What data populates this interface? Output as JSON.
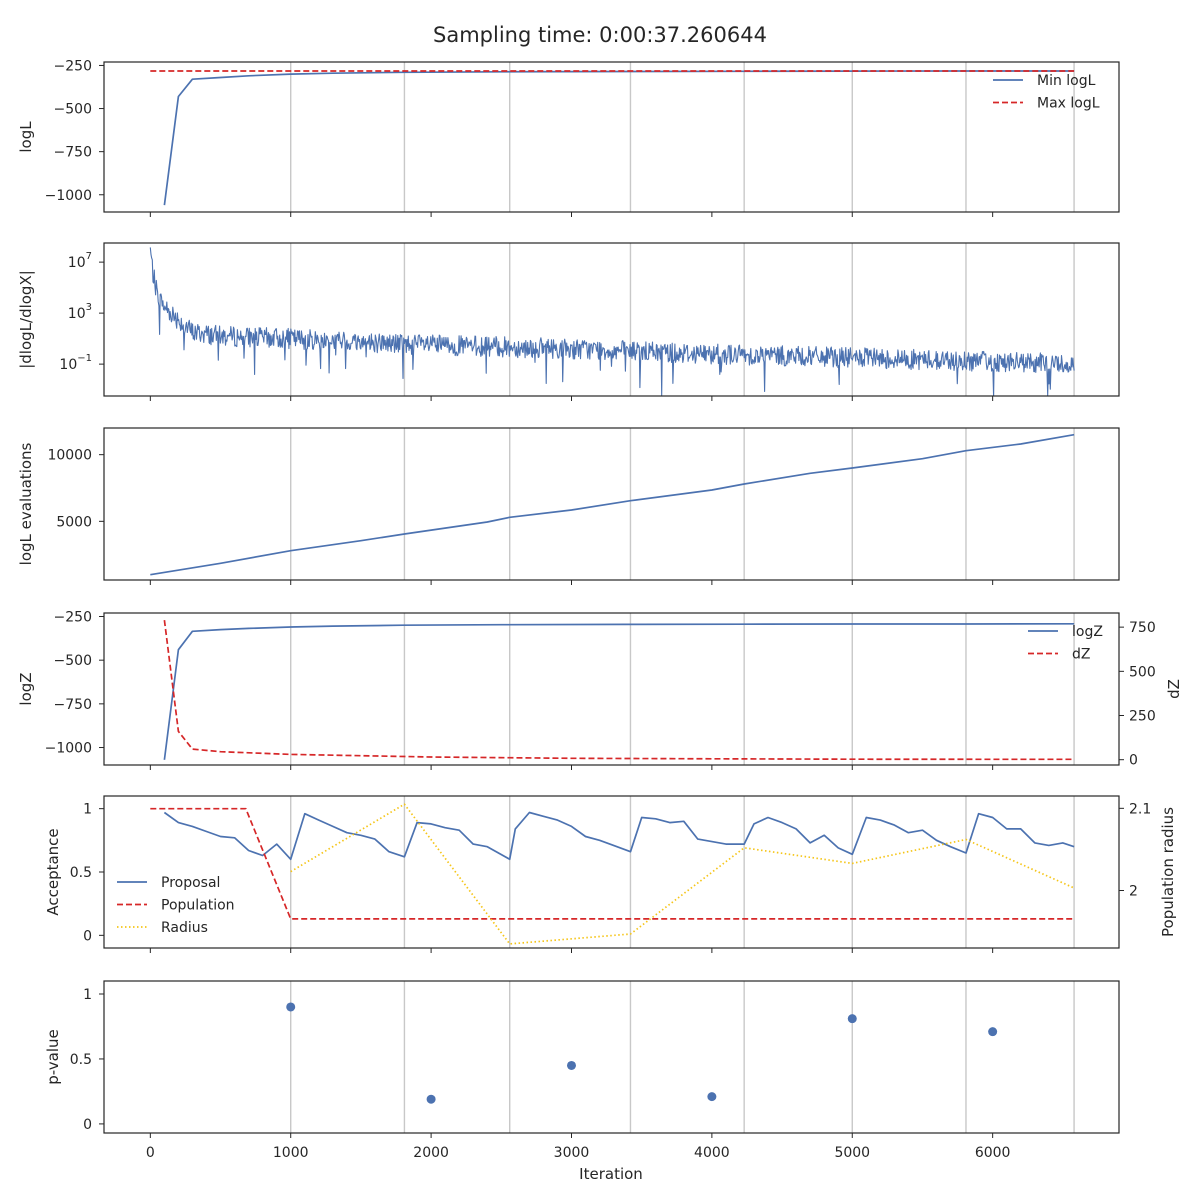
{
  "figure": {
    "title": "Sampling time: 0:00:37.260644",
    "xlabel": "Iteration",
    "xlim": [
      -330,
      6900
    ],
    "x_ticks": [
      0,
      1000,
      2000,
      3000,
      4000,
      5000,
      6000
    ],
    "vlines": [
      1000,
      1810,
      2560,
      3420,
      4230,
      5000,
      5810,
      6580
    ],
    "colors": {
      "blue": "#4c72b0",
      "red": "#d62728",
      "yellow": "#f5c518",
      "grid": "#c8c8c8",
      "axis": "#262626"
    }
  },
  "chart_data": [
    {
      "type": "line",
      "ylabel": "logL",
      "ylim": [
        -1100,
        -230
      ],
      "yticks": [
        -250,
        -500,
        -750,
        -1000
      ],
      "legend_placement": "top-right",
      "series": [
        {
          "name": "Min logL",
          "style": "solid",
          "color": "#4c72b0",
          "x": [
            100,
            200,
            300,
            500,
            700,
            1000,
            1300,
            1800,
            2500,
            3400,
            4200,
            5000,
            5800,
            6580
          ],
          "y": [
            -1060,
            -430,
            -330,
            -320,
            -310,
            -300,
            -295,
            -290,
            -287,
            -285,
            -284,
            -283,
            -282,
            -282
          ]
        },
        {
          "name": "Max logL",
          "style": "dashed",
          "color": "#d62728",
          "x": [
            0,
            6580
          ],
          "y": [
            -282,
            -282
          ]
        }
      ]
    },
    {
      "type": "line",
      "ylabel": "|dlogL/dlogX|",
      "yscale": "log",
      "ylim_log10": [
        -3.5,
        8.5
      ],
      "yticks": [
        {
          "label": "10",
          "sup": "7",
          "log10": 7
        },
        {
          "label": "10",
          "sup": "3",
          "log10": 3
        },
        {
          "label": "10",
          "sup": "−1",
          "log10": -1
        }
      ],
      "series": [
        {
          "name": "",
          "style": "solid",
          "color": "#4c72b0",
          "x": [
            0,
            20,
            50,
            100,
            200,
            300,
            500,
            1000,
            2000,
            3000,
            4000,
            5000,
            6000,
            6580
          ],
          "y_log10": [
            8,
            6,
            4.5,
            3.5,
            2.5,
            1.5,
            1.2,
            1.0,
            0.5,
            0.2,
            -0.2,
            -0.5,
            -0.8,
            -1.0
          ],
          "noise_log10": 0.8
        }
      ]
    },
    {
      "type": "line",
      "ylabel": "logL evaluations",
      "ylim": [
        600,
        12000
      ],
      "yticks": [
        5000,
        10000
      ],
      "series": [
        {
          "name": "",
          "style": "solid",
          "color": "#4c72b0",
          "x": [
            0,
            500,
            1000,
            1500,
            1810,
            2400,
            2560,
            3000,
            3420,
            4000,
            4230,
            4700,
            5000,
            5500,
            5810,
            6200,
            6580
          ],
          "y": [
            1000,
            1850,
            2800,
            3550,
            4050,
            4950,
            5300,
            5850,
            6550,
            7350,
            7800,
            8600,
            9000,
            9700,
            10300,
            10800,
            11500
          ]
        }
      ]
    },
    {
      "type": "line",
      "ylabel": "logZ",
      "ylabel_right": "dZ",
      "ylim": [
        -1100,
        -230
      ],
      "yticks": [
        -250,
        -500,
        -750,
        -1000
      ],
      "ylim_right": [
        -30,
        830
      ],
      "yticks_right": [
        750,
        500,
        250,
        0
      ],
      "legend_placement": "top-right",
      "series": [
        {
          "name": "logZ",
          "axis": "left",
          "style": "solid",
          "color": "#4c72b0",
          "x": [
            100,
            200,
            300,
            500,
            700,
            1000,
            1300,
            1800,
            2500,
            3400,
            4200,
            5000,
            5800,
            6580
          ],
          "y": [
            -1070,
            -440,
            -335,
            -325,
            -318,
            -310,
            -305,
            -300,
            -297,
            -295,
            -294,
            -293,
            -293,
            -292
          ]
        },
        {
          "name": "dZ",
          "axis": "right",
          "style": "dashed",
          "color": "#d62728",
          "x": [
            100,
            200,
            300,
            500,
            1000,
            2000,
            3000,
            4000,
            5000,
            6000,
            6580
          ],
          "y": [
            790,
            160,
            60,
            45,
            30,
            15,
            8,
            5,
            3,
            2,
            2
          ]
        }
      ]
    },
    {
      "type": "line",
      "ylabel": "Acceptance",
      "ylabel_right": "Population radius",
      "ylim": [
        -0.1,
        1.1
      ],
      "yticks": [
        1.0,
        0.5,
        0.0
      ],
      "ylim_right": [
        1.93,
        2.115
      ],
      "yticks_right": [
        2.1,
        2.0
      ],
      "legend_placement": "lower-left",
      "series": [
        {
          "name": "Proposal",
          "axis": "left",
          "style": "solid",
          "color": "#4c72b0",
          "x": [
            100,
            200,
            300,
            400,
            500,
            600,
            700,
            800,
            900,
            1000,
            1100,
            1200,
            1300,
            1400,
            1500,
            1600,
            1700,
            1810,
            1900,
            2000,
            2100,
            2200,
            2300,
            2400,
            2560,
            2600,
            2700,
            2800,
            2900,
            3000,
            3100,
            3200,
            3300,
            3420,
            3500,
            3600,
            3700,
            3800,
            3900,
            4000,
            4100,
            4230,
            4300,
            4400,
            4500,
            4600,
            4700,
            4800,
            4900,
            5000,
            5100,
            5200,
            5300,
            5400,
            5500,
            5600,
            5700,
            5810,
            5900,
            6000,
            6100,
            6200,
            6300,
            6400,
            6500,
            6580
          ],
          "y": [
            0.97,
            0.89,
            0.86,
            0.82,
            0.78,
            0.77,
            0.67,
            0.63,
            0.72,
            0.6,
            0.96,
            0.91,
            0.86,
            0.81,
            0.79,
            0.76,
            0.66,
            0.62,
            0.89,
            0.88,
            0.85,
            0.83,
            0.72,
            0.7,
            0.6,
            0.84,
            0.97,
            0.94,
            0.91,
            0.86,
            0.78,
            0.75,
            0.71,
            0.66,
            0.93,
            0.92,
            0.89,
            0.9,
            0.76,
            0.74,
            0.72,
            0.72,
            0.88,
            0.93,
            0.89,
            0.84,
            0.73,
            0.79,
            0.69,
            0.64,
            0.93,
            0.91,
            0.87,
            0.81,
            0.83,
            0.75,
            0.7,
            0.65,
            0.96,
            0.93,
            0.84,
            0.84,
            0.73,
            0.71,
            0.73,
            0.7
          ]
        },
        {
          "name": "Population",
          "axis": "left",
          "style": "dashed",
          "color": "#d62728",
          "x": [
            0,
            680,
            1000,
            2000,
            3000,
            4000,
            5000,
            6000,
            6580
          ],
          "y": [
            1.0,
            1.0,
            0.13,
            0.13,
            0.13,
            0.13,
            0.13,
            0.13,
            0.13
          ]
        },
        {
          "name": "Radius",
          "axis": "right",
          "style": "dotted",
          "color": "#f5c518",
          "x": [
            1000,
            1810,
            2560,
            3420,
            4230,
            5000,
            5810,
            6580
          ],
          "y": [
            2.023,
            2.105,
            1.935,
            1.947,
            2.052,
            2.033,
            2.062,
            2.003
          ]
        }
      ]
    },
    {
      "type": "scatter",
      "ylabel": "p-value",
      "ylim": [
        -0.07,
        1.1
      ],
      "yticks": [
        1.0,
        0.5,
        0.0
      ],
      "series": [
        {
          "name": "",
          "color": "#4c72b0",
          "x": [
            1000,
            2000,
            3000,
            4000,
            5000,
            6000
          ],
          "y": [
            0.9,
            0.19,
            0.45,
            0.21,
            0.81,
            0.71
          ]
        }
      ]
    }
  ]
}
